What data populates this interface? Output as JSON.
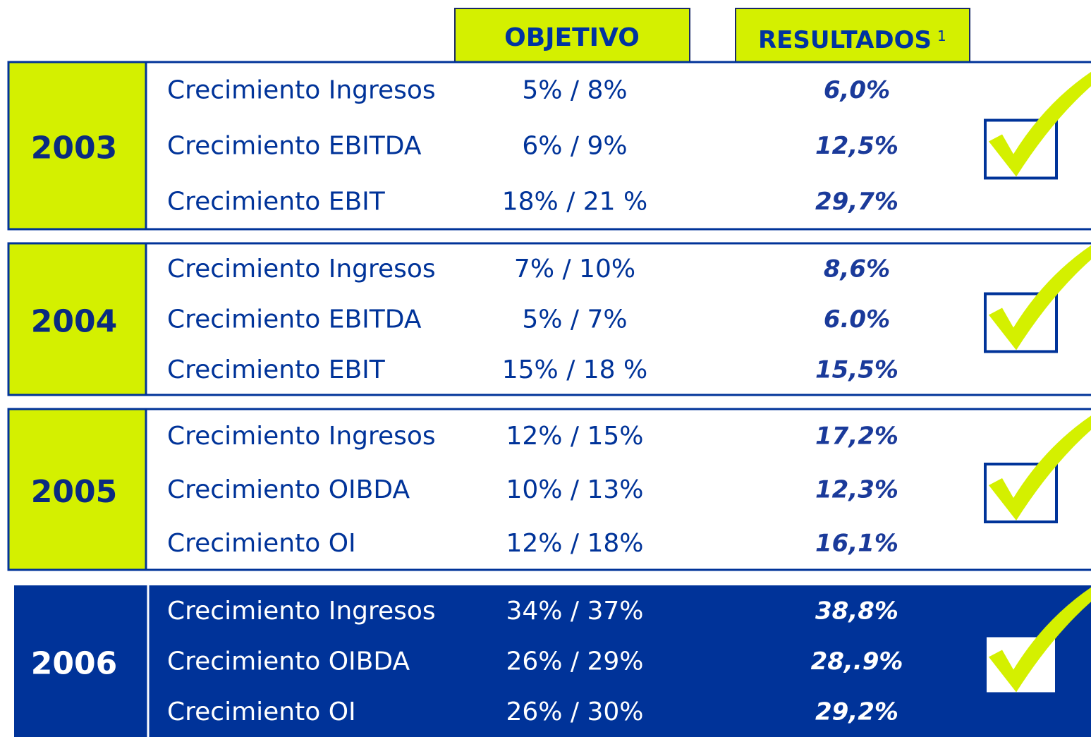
{
  "header": {
    "objective": "OBJETIVO",
    "results": "RESULTADOS",
    "results_note": "1"
  },
  "groups": [
    {
      "year": "2003",
      "rows": [
        [
          "Crecimiento Ingresos",
          "5% / 8%",
          "6,0%"
        ],
        [
          "Crecimiento EBITDA",
          "6% / 9%",
          "12,5%"
        ],
        [
          "Crecimiento EBIT",
          "18% / 21 %",
          "29,7%"
        ]
      ]
    },
    {
      "year": "2004",
      "rows": [
        [
          "Crecimiento Ingresos",
          "7% / 10%",
          "8,6%"
        ],
        [
          "Crecimiento EBITDA",
          "5% / 7%",
          "6.0%"
        ],
        [
          "Crecimiento EBIT",
          "15% / 18 %",
          "15,5%"
        ]
      ]
    },
    {
      "year": "2005",
      "rows": [
        [
          "Crecimiento Ingresos",
          "12% / 15%",
          "17,2%"
        ],
        [
          "Crecimiento OIBDA",
          "10% / 13%",
          "12,3%"
        ],
        [
          "Crecimiento OI",
          "12% / 18%",
          "16,1%"
        ]
      ]
    },
    {
      "year": "2006",
      "rows": [
        [
          "Crecimiento Ingresos",
          "34% / 37%",
          "38,8%"
        ],
        [
          "Crecimiento OIBDA",
          "26% / 29%",
          "28,.9%"
        ],
        [
          "Crecimiento OI",
          "26% / 30%",
          "29,2%"
        ]
      ]
    }
  ]
}
